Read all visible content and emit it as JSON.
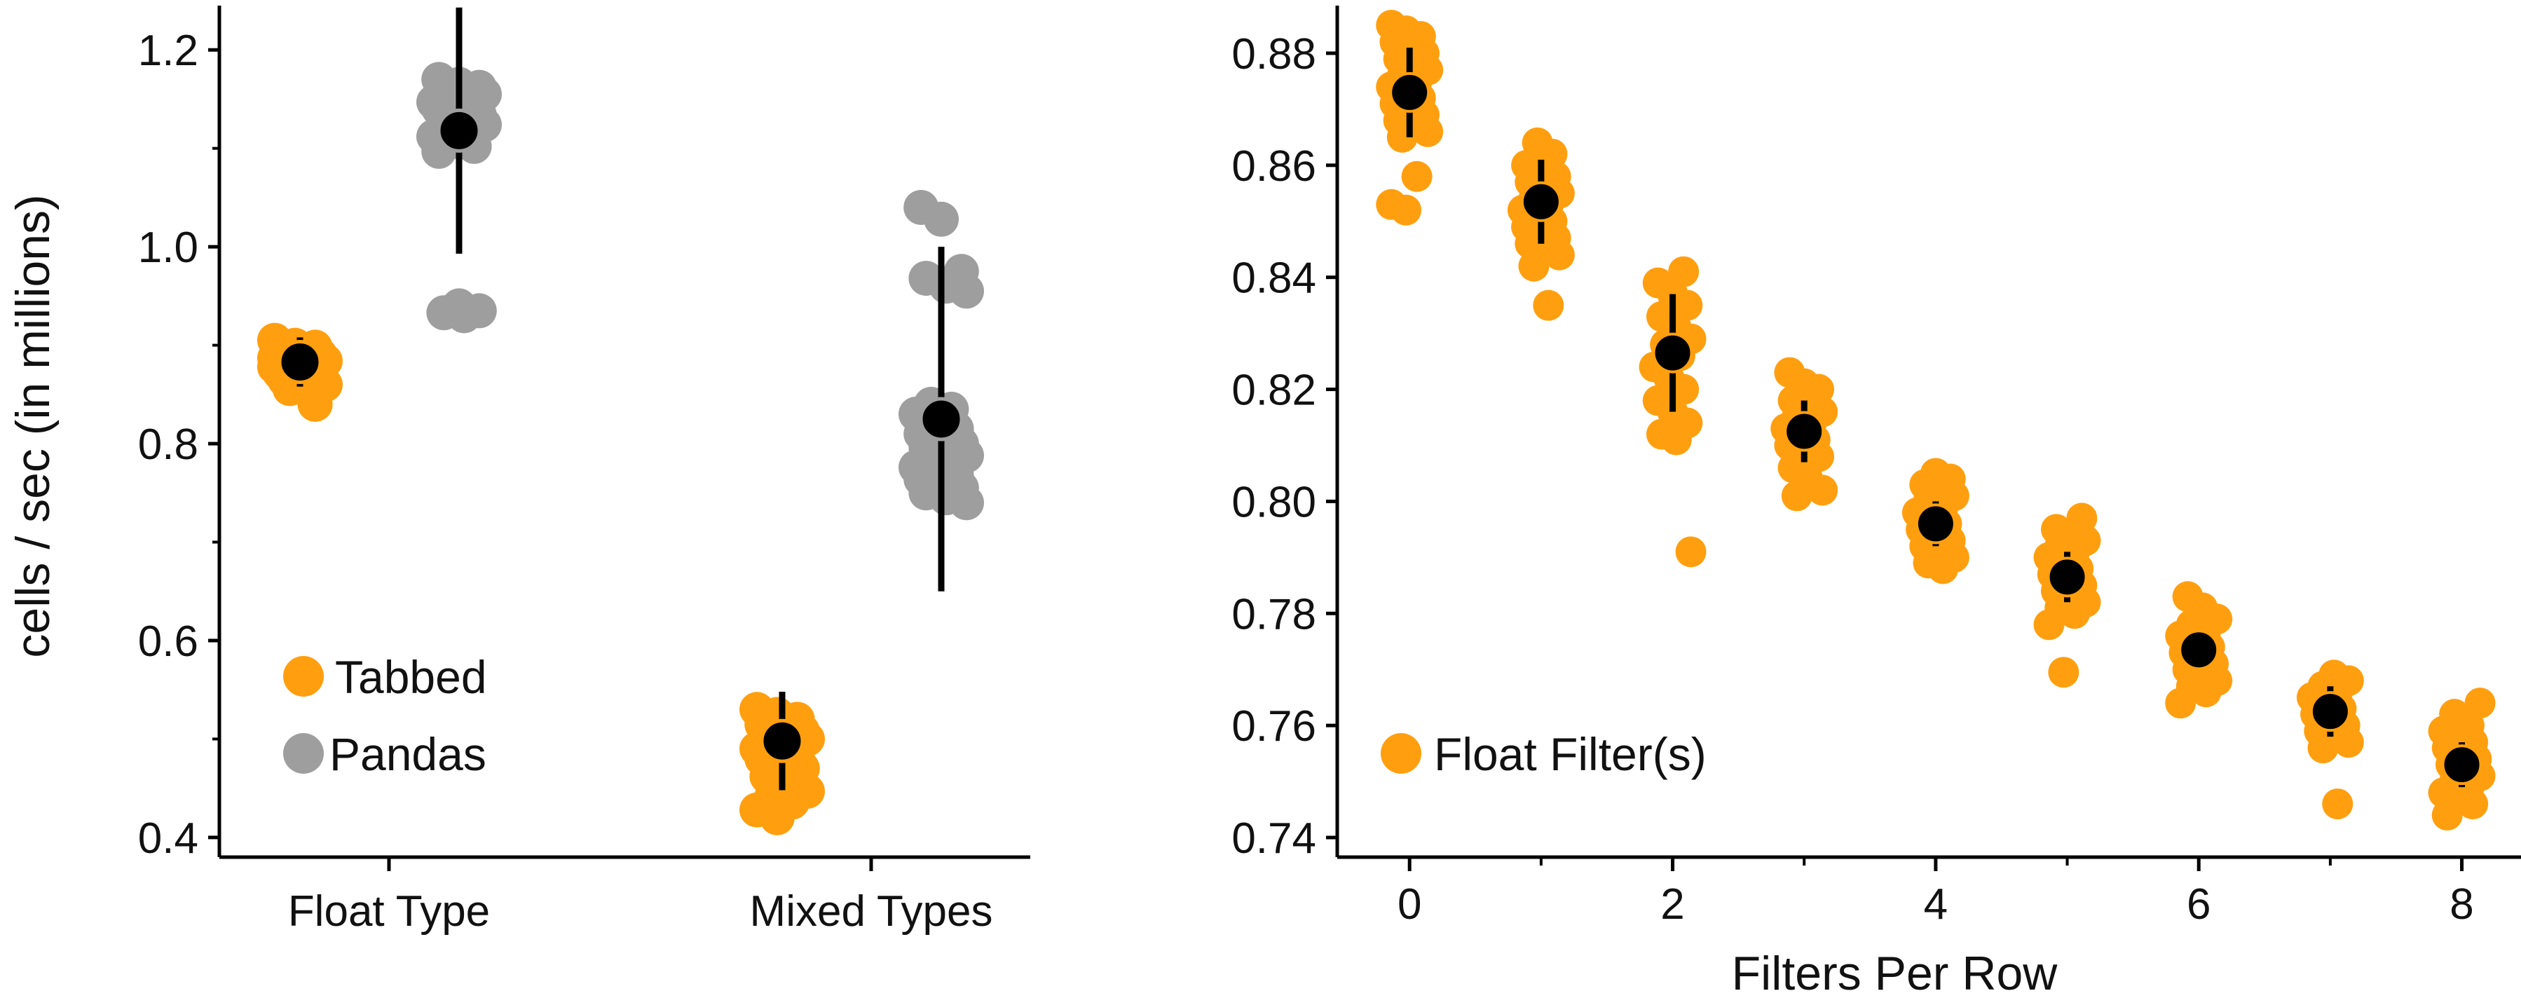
{
  "colors": {
    "tabbed": "#FF9F0F",
    "pandas": "#9E9E9E",
    "mean": "#000000",
    "axis": "#000000"
  },
  "chart_data": [
    {
      "type": "scatter",
      "subtype": "strip plot with mean and error bar",
      "ylabel": "cells / sec (in millions)",
      "xlabel": "",
      "ylim": [
        0.38,
        1.245
      ],
      "yticks": [
        "0.4",
        "0.6",
        "0.8",
        "1.0",
        "1.2"
      ],
      "categories": [
        "Float Type",
        "Mixed Types"
      ],
      "legend": {
        "position": "bottom-left",
        "entries": [
          "Tabbed",
          "Pandas"
        ]
      },
      "series": [
        {
          "name": "Tabbed",
          "color_key": "tabbed",
          "groups": [
            {
              "category": "Float Type",
              "mean": 0.883,
              "err_low": 0.858,
              "err_high": 0.908,
              "points": [
                0.905,
                0.9,
                0.898,
                0.895,
                0.893,
                0.89,
                0.888,
                0.886,
                0.884,
                0.882,
                0.88,
                0.878,
                0.876,
                0.874,
                0.872,
                0.87,
                0.868,
                0.865,
                0.862,
                0.86,
                0.856,
                0.852,
                0.887,
                0.879,
                0.84
              ]
            },
            {
              "category": "Mixed Types",
              "mean": 0.498,
              "err_low": 0.448,
              "err_high": 0.548,
              "points": [
                0.53,
                0.525,
                0.52,
                0.515,
                0.512,
                0.508,
                0.505,
                0.502,
                0.5,
                0.497,
                0.495,
                0.49,
                0.487,
                0.484,
                0.48,
                0.476,
                0.47,
                0.462,
                0.455,
                0.447,
                0.442,
                0.436,
                0.428,
                0.42,
                0.51
              ]
            }
          ]
        },
        {
          "name": "Pandas",
          "color_key": "pandas",
          "groups": [
            {
              "category": "Float Type",
              "mean": 1.118,
              "err_low": 0.993,
              "err_high": 1.243,
              "points": [
                1.17,
                1.165,
                1.162,
                1.16,
                1.158,
                1.155,
                1.152,
                1.15,
                1.147,
                1.145,
                1.142,
                1.14,
                1.137,
                1.134,
                1.13,
                1.127,
                1.124,
                1.12,
                1.116,
                1.112,
                1.107,
                1.102,
                1.097,
                0.94,
                0.935,
                0.933,
                0.93
              ]
            },
            {
              "category": "Mixed Types",
              "mean": 0.825,
              "err_low": 0.65,
              "err_high": 1.0,
              "points": [
                1.04,
                1.028,
                0.975,
                0.968,
                0.96,
                0.955,
                0.84,
                0.835,
                0.83,
                0.822,
                0.815,
                0.81,
                0.805,
                0.8,
                0.796,
                0.792,
                0.788,
                0.784,
                0.78,
                0.776,
                0.772,
                0.768,
                0.764,
                0.76,
                0.755,
                0.75,
                0.745,
                0.74
              ]
            }
          ]
        }
      ]
    },
    {
      "type": "scatter",
      "subtype": "strip plot with mean and error bar",
      "xlabel": "Filters Per Row",
      "ylabel": "",
      "xlim": [
        -0.55,
        8.45
      ],
      "ylim": [
        0.7365,
        0.8885
      ],
      "xticks": [
        "0",
        "2",
        "4",
        "6",
        "8"
      ],
      "yticks": [
        "0.74",
        "0.76",
        "0.78",
        "0.80",
        "0.82",
        "0.84",
        "0.86",
        "0.88"
      ],
      "legend": {
        "position": "bottom-left",
        "entries": [
          "Float Filter(s)"
        ]
      },
      "series": [
        {
          "name": "Float Filter(s)",
          "color_key": "tabbed",
          "groups": [
            {
              "x": 0,
              "mean": 0.873,
              "err_low": 0.865,
              "err_high": 0.881,
              "points": [
                0.885,
                0.884,
                0.883,
                0.882,
                0.881,
                0.88,
                0.879,
                0.878,
                0.877,
                0.876,
                0.875,
                0.874,
                0.873,
                0.872,
                0.871,
                0.87,
                0.869,
                0.868,
                0.867,
                0.866,
                0.865,
                0.858,
                0.853,
                0.852
              ]
            },
            {
              "x": 1,
              "mean": 0.8535,
              "err_low": 0.846,
              "err_high": 0.861,
              "points": [
                0.864,
                0.862,
                0.86,
                0.859,
                0.858,
                0.857,
                0.856,
                0.855,
                0.854,
                0.853,
                0.852,
                0.851,
                0.85,
                0.849,
                0.848,
                0.847,
                0.846,
                0.845,
                0.844,
                0.842,
                0.835
              ]
            },
            {
              "x": 2,
              "mean": 0.8265,
              "err_low": 0.816,
              "err_high": 0.837,
              "points": [
                0.841,
                0.839,
                0.837,
                0.835,
                0.833,
                0.831,
                0.829,
                0.828,
                0.826,
                0.824,
                0.822,
                0.82,
                0.818,
                0.816,
                0.814,
                0.812,
                0.811,
                0.791
              ]
            },
            {
              "x": 3,
              "mean": 0.8125,
              "err_low": 0.807,
              "err_high": 0.818,
              "points": [
                0.823,
                0.821,
                0.82,
                0.818,
                0.817,
                0.816,
                0.815,
                0.814,
                0.813,
                0.812,
                0.811,
                0.81,
                0.809,
                0.808,
                0.806,
                0.804,
                0.802,
                0.801
              ]
            },
            {
              "x": 4,
              "mean": 0.796,
              "err_low": 0.792,
              "err_high": 0.8,
              "points": [
                0.805,
                0.804,
                0.803,
                0.802,
                0.801,
                0.8,
                0.799,
                0.798,
                0.797,
                0.796,
                0.795,
                0.794,
                0.793,
                0.792,
                0.791,
                0.79,
                0.789,
                0.788
              ]
            },
            {
              "x": 5,
              "mean": 0.7865,
              "err_low": 0.782,
              "err_high": 0.791,
              "points": [
                0.797,
                0.795,
                0.794,
                0.793,
                0.792,
                0.791,
                0.79,
                0.789,
                0.788,
                0.787,
                0.786,
                0.785,
                0.784,
                0.783,
                0.782,
                0.781,
                0.78,
                0.778,
                0.7695
              ]
            },
            {
              "x": 6,
              "mean": 0.7735,
              "err_low": 0.77,
              "err_high": 0.777,
              "points": [
                0.783,
                0.781,
                0.779,
                0.778,
                0.777,
                0.776,
                0.775,
                0.774,
                0.773,
                0.772,
                0.771,
                0.77,
                0.769,
                0.768,
                0.767,
                0.766,
                0.764
              ]
            },
            {
              "x": 7,
              "mean": 0.7625,
              "err_low": 0.758,
              "err_high": 0.767,
              "points": [
                0.769,
                0.768,
                0.767,
                0.766,
                0.765,
                0.764,
                0.763,
                0.762,
                0.761,
                0.76,
                0.759,
                0.758,
                0.757,
                0.756,
                0.746
              ]
            },
            {
              "x": 8,
              "mean": 0.753,
              "err_low": 0.749,
              "err_high": 0.757,
              "points": [
                0.764,
                0.762,
                0.76,
                0.759,
                0.758,
                0.757,
                0.756,
                0.755,
                0.754,
                0.753,
                0.752,
                0.751,
                0.75,
                0.749,
                0.748,
                0.747,
                0.746,
                0.744
              ]
            }
          ]
        }
      ]
    }
  ]
}
